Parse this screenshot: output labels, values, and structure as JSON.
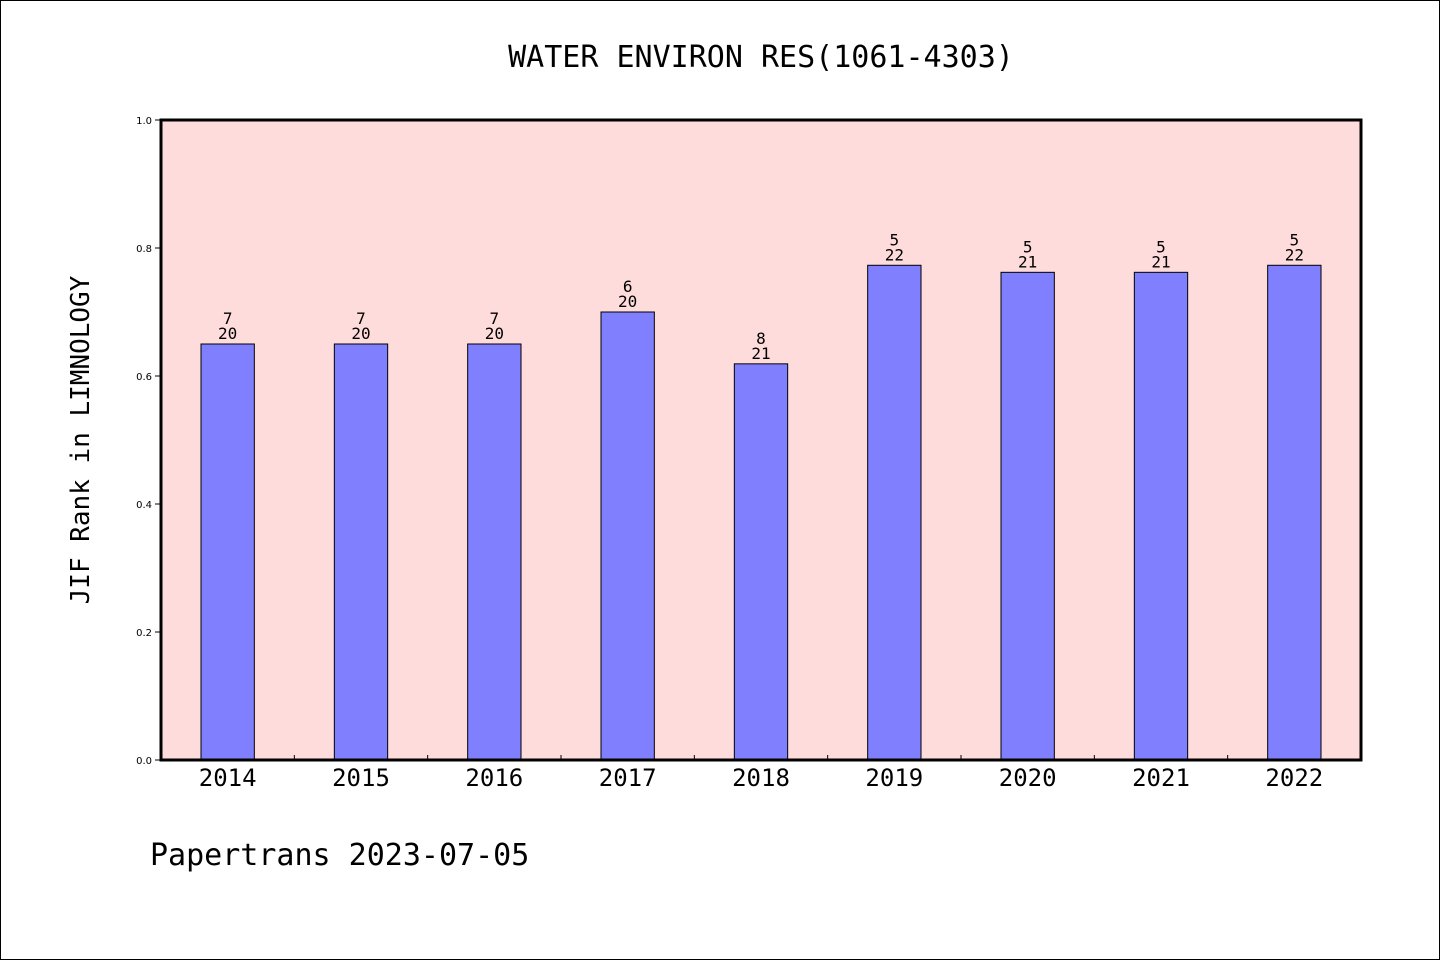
{
  "chart_data": {
    "type": "bar",
    "title": "WATER ENVIRON RES(1061-4303)",
    "ylabel": "JIF Rank in LIMNOLOGY",
    "xlabel": "",
    "categories": [
      "2014",
      "2015",
      "2016",
      "2017",
      "2018",
      "2019",
      "2020",
      "2021",
      "2022"
    ],
    "values": [
      0.65,
      0.65,
      0.65,
      0.7,
      0.619,
      0.773,
      0.762,
      0.762,
      0.773
    ],
    "annotations": [
      {
        "rank": "7",
        "total": "20"
      },
      {
        "rank": "7",
        "total": "20"
      },
      {
        "rank": "7",
        "total": "20"
      },
      {
        "rank": "6",
        "total": "20"
      },
      {
        "rank": "8",
        "total": "21"
      },
      {
        "rank": "5",
        "total": "22"
      },
      {
        "rank": "5",
        "total": "21"
      },
      {
        "rank": "5",
        "total": "21"
      },
      {
        "rank": "5",
        "total": "22"
      }
    ],
    "ylim": [
      0,
      1.0
    ],
    "yticks": [
      "0.0",
      "0.2",
      "0.4",
      "0.6",
      "0.8",
      "1.0"
    ],
    "grid": false,
    "legend": "none",
    "colors": {
      "plot_background": "#ffdcdc",
      "bar_fill": "#8080ff",
      "bar_edge": "#000000",
      "axis": "#000000"
    }
  },
  "footer": "Papertrans 2023-07-05"
}
